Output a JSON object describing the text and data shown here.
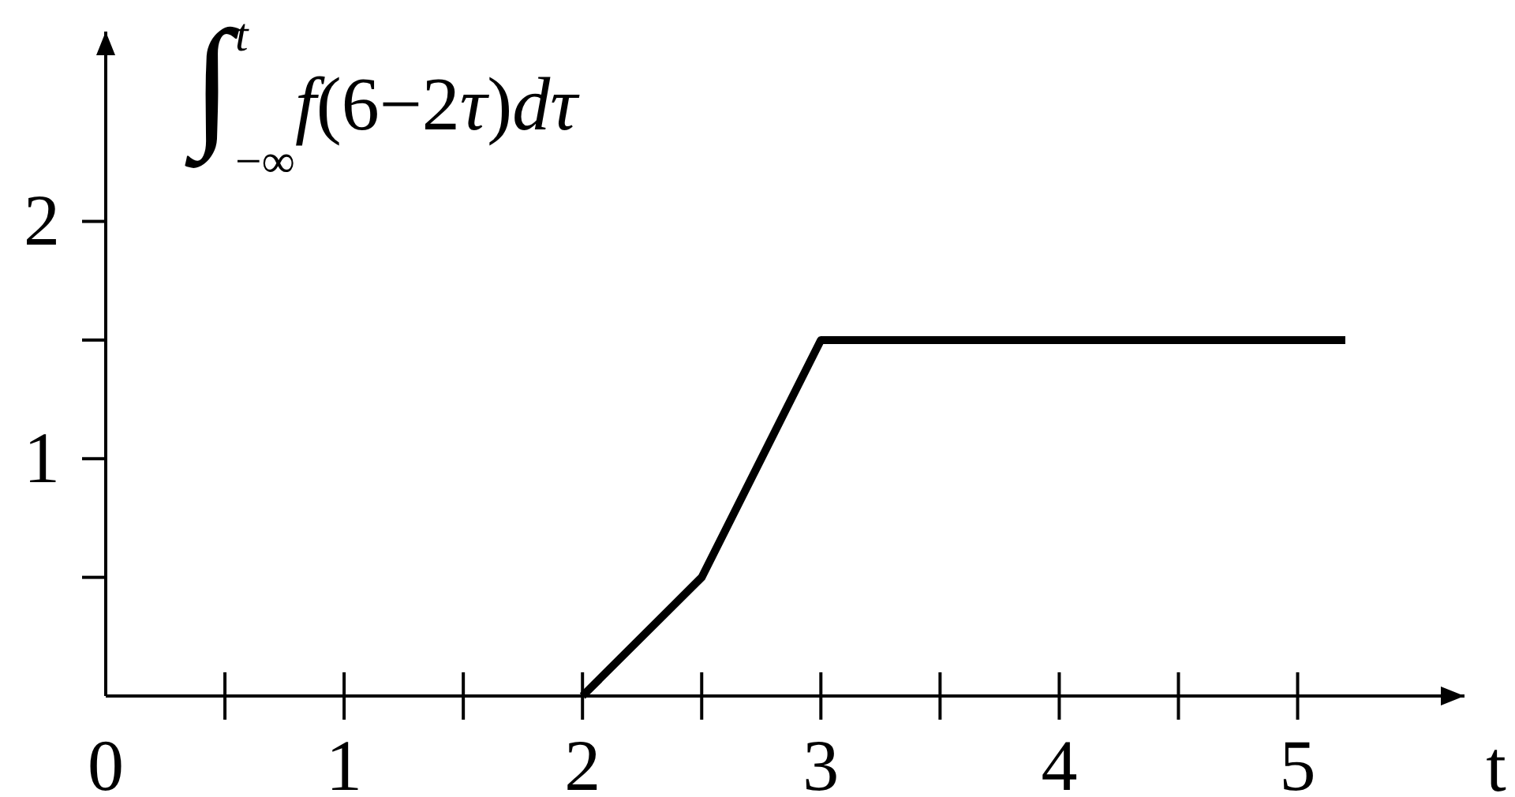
{
  "chart_data": {
    "type": "line",
    "ylabel": "∫$_{−∞}$$^{t}$f(6−2τ)dτ",
    "xlabel": "t",
    "x": [
      2,
      2.5,
      3,
      5.2
    ],
    "series": [
      {
        "color": "#000000",
        "values": [
          0,
          0.5,
          1.5,
          1.5
        ]
      }
    ],
    "xlim": [
      0,
      5.7
    ],
    "ylim": [
      0,
      2.8
    ],
    "xticks": [
      0,
      {
        "value": 0.5,
        "label": null
      },
      1,
      {
        "value": 1.5,
        "label": null
      },
      2,
      {
        "value": 2.5,
        "label": null
      },
      3,
      {
        "value": 3.5,
        "label": null
      },
      4,
      {
        "value": 4.5,
        "label": null
      },
      5
    ],
    "yticks": [
      {
        "value": 0.5,
        "label": null
      },
      1,
      {
        "value": 1.5,
        "label": null
      },
      2
    ],
    "line_style": "solid"
  }
}
